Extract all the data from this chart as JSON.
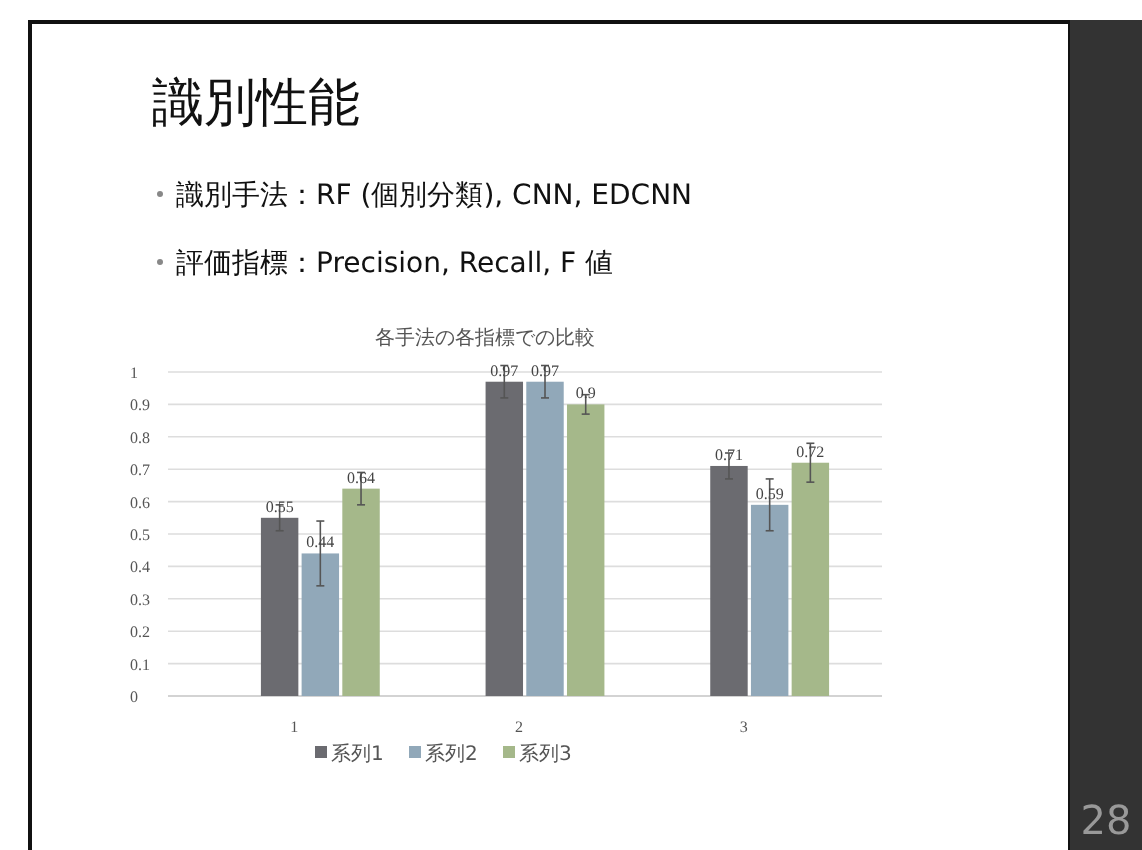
{
  "chart_data": {
    "type": "bar",
    "title": "各手法の各指標での比較",
    "annotations": [
      "識別性能",
      "識別手法：RF (個別分類), CNN, EDCNN",
      "評価指標：Precision, Recall, F 値",
      "28"
    ],
    "categories": [
      "1",
      "2",
      "3"
    ],
    "series": [
      {
        "name": "系列1",
        "color": "#6b6b70",
        "values": [
          0.55,
          0.97,
          0.71
        ],
        "errors": [
          0.04,
          0.05,
          0.04
        ]
      },
      {
        "name": "系列2",
        "color": "#91a8b9",
        "values": [
          0.44,
          0.97,
          0.59
        ],
        "errors": [
          0.1,
          0.05,
          0.08
        ]
      },
      {
        "name": "系列3",
        "color": "#a5b88a",
        "values": [
          0.64,
          0.9,
          0.72
        ],
        "errors": [
          0.05,
          0.03,
          0.06
        ]
      }
    ],
    "ylim": [
      0,
      1
    ],
    "yticks": [
      0,
      0.1,
      0.2,
      0.3,
      0.4,
      0.5,
      0.6,
      0.7,
      0.8,
      0.9,
      1
    ],
    "grid": "y",
    "legend": "bottom",
    "data_labels": true
  }
}
